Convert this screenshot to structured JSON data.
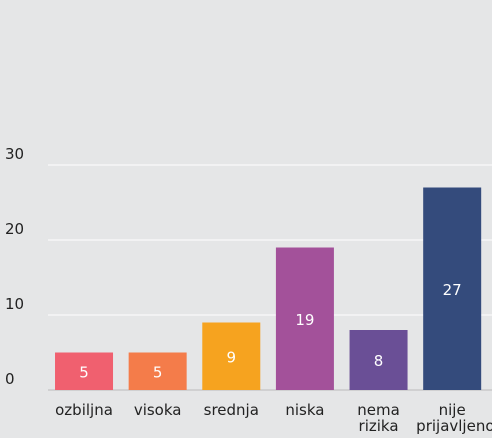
{
  "chart_data": {
    "type": "bar",
    "categories": [
      "ozbiljna",
      "visoka",
      "srednja",
      "niska",
      "nema rizika",
      "nije prijavljeno"
    ],
    "values": [
      5,
      5,
      9,
      19,
      8,
      27
    ],
    "colors": [
      "#f0606f",
      "#f47c4a",
      "#f6a31f",
      "#a3519a",
      "#6a4f96",
      "#344b7c"
    ],
    "ylim": [
      0,
      30
    ],
    "yticks": [
      0,
      10,
      20,
      30
    ],
    "grid": true
  }
}
